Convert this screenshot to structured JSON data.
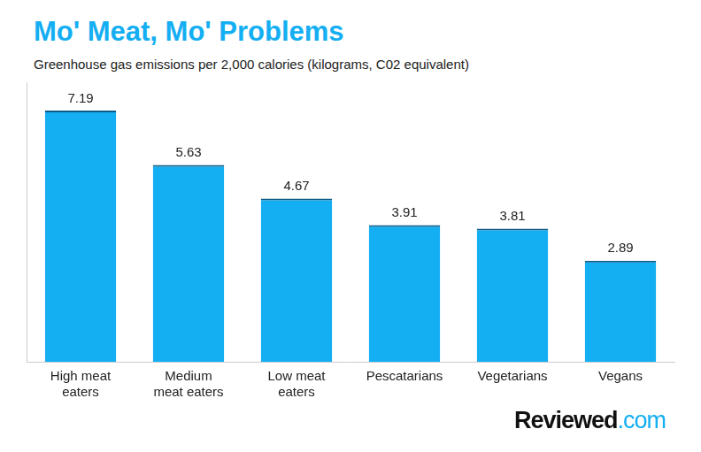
{
  "chart_data": {
    "type": "bar",
    "title": "Mo' Meat, Mo' Problems",
    "subtitle": "Greenhouse gas emissions per 2,000 calories (kilograms, C02 equivalent)",
    "source": "Reviewed.com",
    "categories": [
      "High meat eaters",
      "Medium meat eaters",
      "Low meat eaters",
      "Pescatarians",
      "Vegetarians",
      "Vegans"
    ],
    "values": [
      7.19,
      5.63,
      4.67,
      3.91,
      3.81,
      2.89
    ],
    "color": "#14aef2",
    "ylim": [
      0,
      8
    ],
    "grid": false,
    "data_labels": true,
    "tick_labels": "x"
  }
}
